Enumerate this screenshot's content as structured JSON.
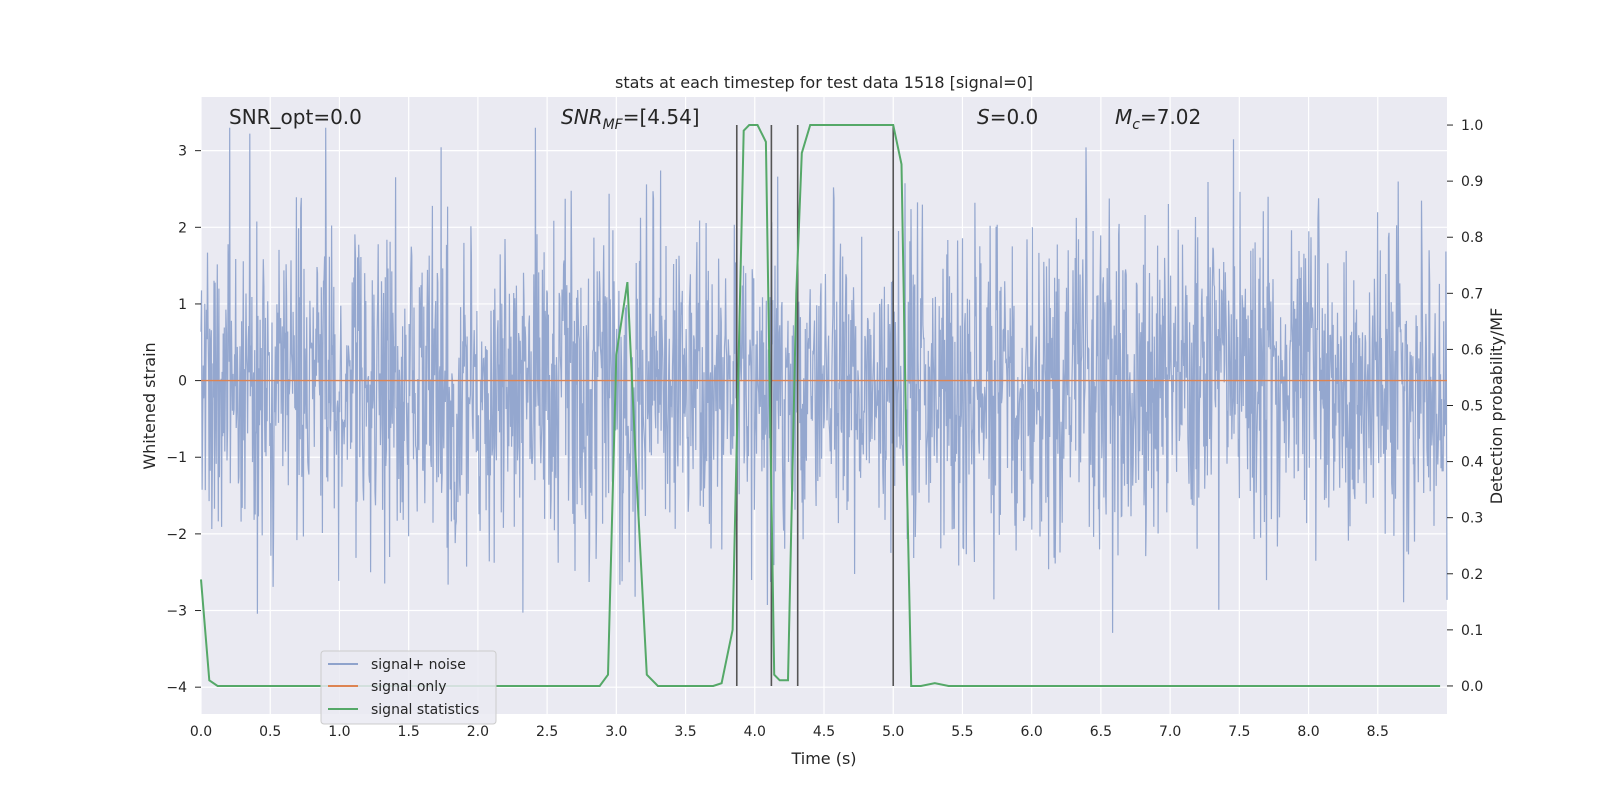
{
  "chart_data": {
    "type": "line",
    "title": "stats at each timestep for test data 1518 [signal=0]",
    "xlabel": "Time (s)",
    "ylabel": "Whitened strain",
    "y2label": "Detection probability/MF",
    "xlim": [
      0.0,
      9.0
    ],
    "ylim": [
      -4.35,
      3.7
    ],
    "y2lim": [
      -0.05,
      1.05
    ],
    "xticks": [
      "0.0",
      "0.5",
      "1.0",
      "1.5",
      "2.0",
      "2.5",
      "3.0",
      "3.5",
      "4.0",
      "4.5",
      "5.0",
      "5.5",
      "6.0",
      "6.5",
      "7.0",
      "7.5",
      "8.0",
      "8.5"
    ],
    "yticks": [
      "3",
      "2",
      "1",
      "0",
      "−1",
      "−2",
      "−3",
      "−4"
    ],
    "y2ticks": [
      "1.0",
      "0.9",
      "0.8",
      "0.7",
      "0.6",
      "0.5",
      "0.4",
      "0.3",
      "0.2",
      "0.1",
      "0.0"
    ],
    "grid": true,
    "legend_position": "lower-left",
    "annotations": {
      "snr_opt": "SNR_opt=0.0",
      "snr_mf_main": "SNR",
      "snr_mf_sub": "MF",
      "snr_mf_value": "=[4.54]",
      "s_main": "S",
      "s_value": "=0.0",
      "mc_main": "M",
      "mc_sub": "c",
      "mc_value": "=7.02"
    },
    "series": [
      {
        "name": "signal+ noise",
        "color": "#8fa3cc",
        "description_of_values": "whitened noise, approx ±1.9 band with spikes to ±3.3"
      },
      {
        "name": "signal only",
        "color": "#dd8452",
        "values_constant": 0.0
      },
      {
        "name": "signal statistics",
        "color": "#55a868",
        "axis": "right",
        "x": [
          0.0,
          0.06,
          0.12,
          0.2,
          0.5,
          1.0,
          1.5,
          2.0,
          2.5,
          2.88,
          2.94,
          3.0,
          3.08,
          3.15,
          3.22,
          3.3,
          3.4,
          3.5,
          3.6,
          3.7,
          3.76,
          3.84,
          3.92,
          3.96,
          4.02,
          4.08,
          4.14,
          4.18,
          4.24,
          4.3,
          4.34,
          4.4,
          4.6,
          4.8,
          5.0,
          5.06,
          5.1,
          5.13,
          5.2,
          5.3,
          5.4,
          6.0,
          7.0,
          8.0,
          8.95
        ],
        "y": [
          0.19,
          0.01,
          0.0,
          0.0,
          0.0,
          0.0,
          0.0,
          0.0,
          0.0,
          0.0,
          0.02,
          0.59,
          0.72,
          0.35,
          0.02,
          0.0,
          0.0,
          0.0,
          0.0,
          0.0,
          0.005,
          0.1,
          0.99,
          1.0,
          1.0,
          0.97,
          0.02,
          0.01,
          0.01,
          0.7,
          0.95,
          1.0,
          1.0,
          1.0,
          1.0,
          0.93,
          0.35,
          0.0,
          0.0,
          0.005,
          0.0,
          0.0,
          0.0,
          0.0,
          0.0
        ]
      }
    ],
    "vertical_lines_x": [
      3.87,
      4.12,
      4.31,
      5.0
    ],
    "vertical_lines_color": "#555555"
  }
}
